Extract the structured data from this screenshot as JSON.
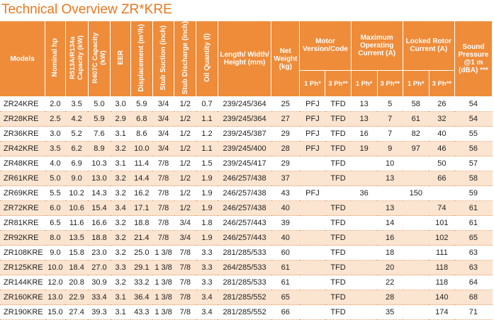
{
  "title": "Technical Overview ZR*KRE",
  "headers": {
    "models": "Models",
    "nominal_hp": "Nominal hp",
    "r513a_capacity": "R513A/R134a\nCapacity (kW)",
    "r407c_capacity": "R407C Capacity\n(kW)",
    "eer": "EER",
    "displacement": "Displacement (m³/h)",
    "stub_suction": "Stub Suction (inch)",
    "stub_discharge": "Stub Discharge (inch)",
    "oil_quantity": "Oil Quantity (l)",
    "dimensions": "Length/ Width/ Height (mm)",
    "net_weight": "Net Weight (kg)",
    "motor": "Motor Version/Code",
    "max_current": "Maximum Operating Current (A)",
    "locked_rotor": "Locked Rotor Current (A)",
    "sound": "Sound Pressure @1 m (dBA) ***",
    "ph1": "1 Ph*",
    "ph3": "3 Ph**"
  },
  "rows": [
    {
      "model": "ZR24KRE",
      "hp": "2.0",
      "r513a": "3.5",
      "r407c": "5.0",
      "eer": "3.0",
      "disp": "5.9",
      "suction": "3/4",
      "discharge": "1/2",
      "oil": "0.7",
      "dims": "239/245/364",
      "weight": "25",
      "motor1": "PFJ",
      "motor3": "TFD",
      "mc1": "13",
      "mc3": "5",
      "lr1": "58",
      "lr3": "26",
      "sound": "54"
    },
    {
      "model": "ZR28KRE",
      "hp": "2.5",
      "r513a": "4.2",
      "r407c": "5.9",
      "eer": "2.9",
      "disp": "6.8",
      "suction": "3/4",
      "discharge": "1/2",
      "oil": "1.1",
      "dims": "239/245/364",
      "weight": "27",
      "motor1": "PFJ",
      "motor3": "TFD",
      "mc1": "13",
      "mc3": "7",
      "lr1": "61",
      "lr3": "32",
      "sound": "54"
    },
    {
      "model": "ZR36KRE",
      "hp": "3.0",
      "r513a": "5.2",
      "r407c": "7.6",
      "eer": "3.1",
      "disp": "8.6",
      "suction": "3/4",
      "discharge": "1/2",
      "oil": "1.2",
      "dims": "239/245/387",
      "weight": "29",
      "motor1": "PFJ",
      "motor3": "TFD",
      "mc1": "16",
      "mc3": "7",
      "lr1": "82",
      "lr3": "40",
      "sound": "55"
    },
    {
      "model": "ZR42KRE",
      "hp": "3.5",
      "r513a": "6.2",
      "r407c": "8.9",
      "eer": "3.2",
      "disp": "10.0",
      "suction": "3/4",
      "discharge": "1/2",
      "oil": "1.1",
      "dims": "239/245/400",
      "weight": "28",
      "motor1": "PFJ",
      "motor3": "TFD",
      "mc1": "19",
      "mc3": "9",
      "lr1": "97",
      "lr3": "46",
      "sound": "56"
    },
    {
      "model": "ZR48KRE",
      "hp": "4.0",
      "r513a": "6.9",
      "r407c": "10.3",
      "eer": "3.1",
      "disp": "11.4",
      "suction": "7/8",
      "discharge": "1/2",
      "oil": "1.5",
      "dims": "239/245/417",
      "weight": "29",
      "motor1": "",
      "motor3": "TFD",
      "mc1": "",
      "mc3": "10",
      "lr1": "",
      "lr3": "50",
      "sound": "57"
    },
    {
      "model": "ZR61KRE",
      "hp": "5.0",
      "r513a": "9.0",
      "r407c": "13.0",
      "eer": "3.2",
      "disp": "14.4",
      "suction": "7/8",
      "discharge": "1/2",
      "oil": "1.9",
      "dims": "246/257/438",
      "weight": "37",
      "motor1": "",
      "motor3": "TFD",
      "mc1": "",
      "mc3": "13",
      "lr1": "",
      "lr3": "66",
      "sound": "58"
    },
    {
      "model": "ZR69KRE",
      "hp": "5.5",
      "r513a": "10.2",
      "r407c": "14.3",
      "eer": "3.2",
      "disp": "16.2",
      "suction": "7/8",
      "discharge": "1/2",
      "oil": "1.9",
      "dims": "246/257/438",
      "weight": "43",
      "motor1": "PFJ",
      "motor3": "",
      "mc1": "36",
      "mc3": "",
      "lr1": "150",
      "lr3": "",
      "sound": "59"
    },
    {
      "model": "ZR72KRE",
      "hp": "6.0",
      "r513a": "10.6",
      "r407c": "15.4",
      "eer": "3.4",
      "disp": "17.1",
      "suction": "7/8",
      "discharge": "1/2",
      "oil": "1.9",
      "dims": "246/257/438",
      "weight": "40",
      "motor1": "",
      "motor3": "TFD",
      "mc1": "",
      "mc3": "13",
      "lr1": "",
      "lr3": "74",
      "sound": "61"
    },
    {
      "model": "ZR81KRE",
      "hp": "6.5",
      "r513a": "11.6",
      "r407c": "16.6",
      "eer": "3.2",
      "disp": "18.8",
      "suction": "7/8",
      "discharge": "3/4",
      "oil": "1.8",
      "dims": "246/257/443",
      "weight": "39",
      "motor1": "",
      "motor3": "TFD",
      "mc1": "",
      "mc3": "14",
      "lr1": "",
      "lr3": "101",
      "sound": "61"
    },
    {
      "model": "ZR92KRE",
      "hp": "8.0",
      "r513a": "13.5",
      "r407c": "18.8",
      "eer": "3.2",
      "disp": "21.4",
      "suction": "7/8",
      "discharge": "3/4",
      "oil": "1.9",
      "dims": "246/257/443",
      "weight": "40",
      "motor1": "",
      "motor3": "TFD",
      "mc1": "",
      "mc3": "16",
      "lr1": "",
      "lr3": "102",
      "sound": "65"
    },
    {
      "model": "ZR108KRE",
      "hp": "9.0",
      "r513a": "15.8",
      "r407c": "23.0",
      "eer": "3.2",
      "disp": "25.0",
      "suction": "1 3/8",
      "discharge": "7/8",
      "oil": "3.3",
      "dims": "281/285/533",
      "weight": "60",
      "motor1": "",
      "motor3": "TFD",
      "mc1": "",
      "mc3": "18",
      "lr1": "",
      "lr3": "111",
      "sound": "63"
    },
    {
      "model": "ZR125KRE",
      "hp": "10.0",
      "r513a": "18.4",
      "r407c": "27.0",
      "eer": "3.3",
      "disp": "29.1",
      "suction": "1 3/8",
      "discharge": "7/8",
      "oil": "3.3",
      "dims": "264/285/533",
      "weight": "61",
      "motor1": "",
      "motor3": "TFD",
      "mc1": "",
      "mc3": "20",
      "lr1": "",
      "lr3": "118",
      "sound": "63"
    },
    {
      "model": "ZR144KRE",
      "hp": "12.0",
      "r513a": "20.8",
      "r407c": "30.9",
      "eer": "3.2",
      "disp": "33.2",
      "suction": "1 3/8",
      "discharge": "7/8",
      "oil": "3.3",
      "dims": "281/285/533",
      "weight": "61",
      "motor1": "",
      "motor3": "TFD",
      "mc1": "",
      "mc3": "22",
      "lr1": "",
      "lr3": "118",
      "sound": "64"
    },
    {
      "model": "ZR160KRE",
      "hp": "13.0",
      "r513a": "22.9",
      "r407c": "33.4",
      "eer": "3.1",
      "disp": "36.4",
      "suction": "1 3/8",
      "discharge": "7/8",
      "oil": "3.4",
      "dims": "281/285/552",
      "weight": "65",
      "motor1": "",
      "motor3": "TFD",
      "mc1": "",
      "mc3": "28",
      "lr1": "",
      "lr3": "140",
      "sound": "68"
    },
    {
      "model": "ZR190KRE",
      "hp": "15.0",
      "r513a": "27.4",
      "r407c": "39.3",
      "eer": "3.1",
      "disp": "43.3",
      "suction": "1 3/8",
      "discharge": "7/8",
      "oil": "3.4",
      "dims": "281/285/552",
      "weight": "66",
      "motor1": "",
      "motor3": "TFD",
      "mc1": "",
      "mc3": "35",
      "lr1": "",
      "lr3": "174",
      "sound": "71"
    }
  ]
}
